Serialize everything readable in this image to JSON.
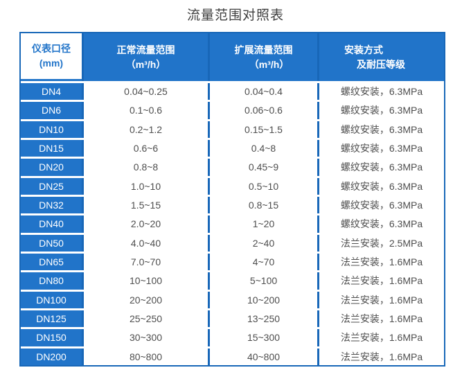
{
  "colors": {
    "accent_blue": "#2174c9",
    "border_blue": "#1867b8",
    "data_text": "#4d4d4d",
    "title_text": "#3e3e3e",
    "header_text": "#ffffff"
  },
  "chart_data": {
    "type": "table",
    "title": "流量范围对照表",
    "headers": [
      {
        "line1": "仪表口径",
        "line2": "(mm)"
      },
      {
        "line1": "正常流量范围",
        "line2": "（m³/h）"
      },
      {
        "line1": "扩展流量范围",
        "line2": "（m³/h）"
      },
      {
        "line1": "安装方式",
        "line2": "及耐压等级"
      }
    ],
    "column_keys": [
      "meter_diameter_mm",
      "normal_flow_range_m3h",
      "extended_flow_range_m3h",
      "installation_and_pressure_rating"
    ],
    "rows": [
      [
        "DN4",
        "0.04~0.25",
        "0.04~0.4",
        "螺纹安装，6.3MPa"
      ],
      [
        "DN6",
        "0.1~0.6",
        "0.06~0.6",
        "螺纹安装，6.3MPa"
      ],
      [
        "DN10",
        "0.2~1.2",
        "0.15~1.5",
        "螺纹安装，6.3MPa"
      ],
      [
        "DN15",
        "0.6~6",
        "0.4~8",
        "螺纹安装，6.3MPa"
      ],
      [
        "DN20",
        "0.8~8",
        "0.45~9",
        "螺纹安装，6.3MPa"
      ],
      [
        "DN25",
        "1.0~10",
        "0.5~10",
        "螺纹安装，6.3MPa"
      ],
      [
        "DN32",
        "1.5~15",
        "0.8~15",
        "螺纹安装，6.3MPa"
      ],
      [
        "DN40",
        "2.0~20",
        "1~20",
        "螺纹安装，6.3MPa"
      ],
      [
        "DN50",
        "4.0~40",
        "2~40",
        "法兰安装，2.5MPa"
      ],
      [
        "DN65",
        "7.0~70",
        "4~70",
        "法兰安装，1.6MPa"
      ],
      [
        "DN80",
        "10~100",
        "5~100",
        "法兰安装，1.6MPa"
      ],
      [
        "DN100",
        "20~200",
        "10~200",
        "法兰安装，1.6MPa"
      ],
      [
        "DN125",
        "25~250",
        "13~250",
        "法兰安装，1.6MPa"
      ],
      [
        "DN150",
        "30~300",
        "15~300",
        "法兰安装，1.6MPa"
      ],
      [
        "DN200",
        "80~800",
        "40~800",
        "法兰安装，1.6MPa"
      ]
    ]
  }
}
